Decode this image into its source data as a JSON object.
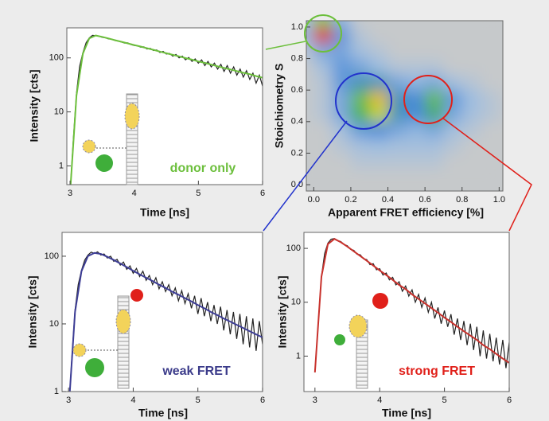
{
  "chart_data": [
    {
      "type": "line",
      "log_y": true,
      "x_label": "Time [ns]",
      "y_label": "Intensity [cts]",
      "annotation": "donor only",
      "annotation_color": "#6cbf3c",
      "xlim": [
        2.95,
        6.0
      ],
      "xticks": [
        3,
        4,
        5,
        6
      ],
      "ylim": [
        0.45,
        360
      ],
      "yticks": [
        1,
        10,
        100
      ],
      "series": [
        {
          "color": "#222222",
          "x": [
            3.0,
            3.05,
            3.1,
            3.15,
            3.2,
            3.25,
            3.3,
            3.35,
            3.4,
            3.45,
            3.5,
            3.55,
            3.6,
            3.65,
            3.7,
            3.75,
            3.8,
            3.85,
            3.9,
            3.95,
            4.0,
            4.05,
            4.1,
            4.15,
            4.2,
            4.25,
            4.3,
            4.35,
            4.4,
            4.45,
            4.5,
            4.55,
            4.6,
            4.65,
            4.7,
            4.75,
            4.8,
            4.85,
            4.9,
            4.95,
            5.0,
            5.05,
            5.1,
            5.15,
            5.2,
            5.25,
            5.3,
            5.35,
            5.4,
            5.45,
            5.5,
            5.55,
            5.6,
            5.65,
            5.7,
            5.75,
            5.8,
            5.85,
            5.9,
            5.95,
            6.0
          ],
          "values": [
            0.3,
            3,
            22,
            70,
            125,
            190,
            235,
            262,
            258,
            252,
            240,
            236,
            225,
            222,
            210,
            204,
            197,
            188,
            190,
            176,
            170,
            168,
            158,
            160,
            146,
            150,
            137,
            140,
            126,
            132,
            118,
            121,
            108,
            116,
            100,
            108,
            92,
            102,
            86,
            96,
            80,
            92,
            72,
            86,
            68,
            80,
            62,
            76,
            56,
            72,
            52,
            68,
            48,
            62,
            44,
            58,
            40,
            52,
            34,
            48,
            30
          ]
        },
        {
          "color": "#6cbf3c",
          "x": [
            3.0,
            3.1,
            3.2,
            3.3,
            3.4,
            3.5,
            3.6,
            3.7,
            3.8,
            3.9,
            4.0,
            4.1,
            4.2,
            4.3,
            4.4,
            4.5,
            4.6,
            4.7,
            4.8,
            4.9,
            5.0,
            5.1,
            5.2,
            5.3,
            5.4,
            5.5,
            5.6,
            5.7,
            5.8,
            5.9,
            6.0
          ],
          "values": [
            0.3,
            20,
            120,
            230,
            260,
            245,
            229,
            213,
            199,
            186,
            173,
            162,
            151,
            141,
            131,
            122,
            114,
            107,
            99,
            93,
            86,
            81,
            75,
            70,
            65,
            61,
            57,
            53,
            50,
            46,
            43
          ]
        }
      ]
    },
    {
      "type": "heatmap",
      "x_label": "Apparent FRET efficiency [%]",
      "y_label": "Stoichiometry S",
      "xlim": [
        -0.04,
        1.02
      ],
      "ylim": [
        -0.04,
        1.04
      ],
      "xticks": [
        {
          "value": 0,
          "label": "0.0"
        },
        0.2,
        0.4,
        0.6,
        0.8,
        {
          "value": 1,
          "label": "1.0"
        }
      ],
      "yticks": [
        {
          "value": 0,
          "label": "0.0"
        },
        0.2,
        0.4,
        0.6,
        0.8,
        {
          "value": 1,
          "label": "1.0"
        }
      ],
      "x_bins": [
        -0.1,
        0,
        0.1,
        0.2,
        0.3,
        0.4,
        0.5,
        0.6,
        0.7,
        0.8,
        0.9,
        1.0
      ],
      "y_bins": [
        0,
        0.1,
        0.2,
        0.3,
        0.4,
        0.5,
        0.6,
        0.7,
        0.8,
        0.9,
        1.0,
        1.1
      ],
      "z": [
        [
          0,
          0,
          0,
          0,
          0,
          0,
          0,
          0,
          0,
          0,
          0
        ],
        [
          0,
          0,
          0,
          0.05,
          0.05,
          0.05,
          0.05,
          0.05,
          0,
          0,
          0
        ],
        [
          0,
          0,
          0.05,
          0.1,
          0.12,
          0.1,
          0.1,
          0.1,
          0.05,
          0,
          0
        ],
        [
          0,
          0,
          0.1,
          0.25,
          0.3,
          0.2,
          0.15,
          0.2,
          0.1,
          0.05,
          0
        ],
        [
          0,
          0.05,
          0.2,
          0.5,
          0.7,
          0.35,
          0.3,
          0.45,
          0.2,
          0.1,
          0.05
        ],
        [
          0,
          0.05,
          0.2,
          0.55,
          0.8,
          0.35,
          0.3,
          0.55,
          0.25,
          0.12,
          0.05
        ],
        [
          0,
          0.05,
          0.25,
          0.35,
          0.35,
          0.2,
          0.15,
          0.2,
          0.1,
          0.05,
          0
        ],
        [
          0,
          0.1,
          0.25,
          0.2,
          0.12,
          0.05,
          0.05,
          0.05,
          0,
          0,
          0
        ],
        [
          0.05,
          0.2,
          0.2,
          0.1,
          0.05,
          0,
          0,
          0,
          0,
          0,
          0
        ],
        [
          0.15,
          1.0,
          0.25,
          0.05,
          0,
          0,
          0,
          0,
          0,
          0,
          0
        ],
        [
          0.1,
          0.6,
          0.15,
          0,
          0,
          0,
          0,
          0,
          0,
          0,
          0
        ]
      ],
      "colorscale": [
        [
          0,
          "#c6c9cb"
        ],
        [
          0.12,
          "#9dbde0"
        ],
        [
          0.3,
          "#4a8ad8"
        ],
        [
          0.5,
          "#46b35a"
        ],
        [
          0.75,
          "#e4df2e"
        ],
        [
          1,
          "#e0301e"
        ]
      ]
    },
    {
      "type": "line",
      "log_y": true,
      "x_label": "Time [ns]",
      "y_label": "Intensity [cts]",
      "annotation": "weak FRET",
      "annotation_color": "#3b3b8a",
      "xlim": [
        2.9,
        6.0
      ],
      "xticks": [
        3,
        4,
        5,
        6
      ],
      "ylim": [
        1,
        225
      ],
      "yticks": [
        1,
        10,
        100
      ],
      "series": [
        {
          "color": "#222222",
          "x": [
            3.0,
            3.05,
            3.1,
            3.15,
            3.2,
            3.25,
            3.3,
            3.35,
            3.4,
            3.45,
            3.5,
            3.55,
            3.6,
            3.65,
            3.7,
            3.75,
            3.8,
            3.85,
            3.9,
            3.95,
            4.0,
            4.05,
            4.1,
            4.15,
            4.2,
            4.25,
            4.3,
            4.35,
            4.4,
            4.45,
            4.5,
            4.55,
            4.6,
            4.65,
            4.7,
            4.75,
            4.8,
            4.85,
            4.9,
            4.95,
            5.0,
            5.05,
            5.1,
            5.15,
            5.2,
            5.25,
            5.3,
            5.35,
            5.4,
            5.45,
            5.5,
            5.55,
            5.6,
            5.65,
            5.7,
            5.75,
            5.8,
            5.85,
            5.9,
            5.95,
            6.0
          ],
          "values": [
            0.5,
            3,
            16,
            38,
            62,
            88,
            104,
            115,
            110,
            116,
            104,
            108,
            94,
            100,
            84,
            90,
            74,
            82,
            64,
            72,
            56,
            66,
            50,
            60,
            44,
            52,
            38,
            48,
            33,
            42,
            30,
            38,
            26,
            34,
            22,
            31,
            20,
            28,
            17,
            26,
            14,
            24,
            13,
            21,
            11,
            19,
            10,
            18,
            8,
            16,
            7,
            15,
            6,
            14,
            5,
            13,
            4.5,
            12,
            4,
            11,
            5
          ]
        },
        {
          "color": "#3d3d95",
          "x": [
            3.0,
            3.1,
            3.2,
            3.3,
            3.4,
            3.5,
            3.6,
            3.7,
            3.8,
            3.9,
            4.0,
            4.1,
            4.2,
            4.3,
            4.4,
            4.5,
            4.6,
            4.7,
            4.8,
            4.9,
            5.0,
            5.1,
            5.2,
            5.3,
            5.4,
            5.5,
            5.6,
            5.7,
            5.8,
            5.9,
            6.0
          ],
          "values": [
            0.5,
            15,
            60,
            100,
            112,
            108,
            98,
            88,
            78,
            69,
            61,
            54,
            48,
            43,
            38,
            34,
            30,
            27,
            24,
            21.5,
            19,
            17,
            15,
            13.5,
            12,
            10.8,
            9.7,
            8.7,
            7.8,
            7,
            6.3
          ]
        }
      ]
    },
    {
      "type": "line",
      "log_y": true,
      "x_label": "Time [ns]",
      "y_label": "Intensity [cts]",
      "annotation": "strong FRET",
      "annotation_color": "#e0201a",
      "xlim": [
        2.83,
        6.0
      ],
      "xticks": [
        3,
        4,
        5,
        6
      ],
      "ylim": [
        0.22,
        198
      ],
      "yticks": [
        1,
        10,
        100
      ],
      "series": [
        {
          "color": "#222222",
          "x": [
            3.0,
            3.05,
            3.1,
            3.15,
            3.2,
            3.25,
            3.3,
            3.35,
            3.4,
            3.45,
            3.5,
            3.55,
            3.6,
            3.65,
            3.7,
            3.75,
            3.8,
            3.85,
            3.9,
            3.95,
            4.0,
            4.05,
            4.1,
            4.15,
            4.2,
            4.25,
            4.3,
            4.35,
            4.4,
            4.45,
            4.5,
            4.55,
            4.6,
            4.65,
            4.7,
            4.75,
            4.8,
            4.85,
            4.9,
            4.95,
            5.0,
            5.05,
            5.1,
            5.15,
            5.2,
            5.25,
            5.3,
            5.35,
            5.4,
            5.45,
            5.5,
            5.55,
            5.6,
            5.65,
            5.7,
            5.75,
            5.8,
            5.85,
            5.9,
            5.95,
            6.0
          ],
          "values": [
            0.5,
            4,
            30,
            80,
            125,
            148,
            152,
            140,
            134,
            118,
            112,
            96,
            92,
            78,
            76,
            64,
            62,
            50,
            52,
            40,
            42,
            32,
            35,
            26,
            29,
            21,
            24,
            16,
            20,
            13,
            17,
            10,
            14,
            8,
            12,
            6.5,
            10,
            5,
            8,
            4,
            7,
            3.5,
            6,
            2.5,
            5,
            2,
            4.5,
            1.6,
            4,
            1.3,
            3.5,
            1,
            3,
            0.9,
            2.6,
            0.8,
            2.2,
            0.7,
            2,
            0.6,
            1.8
          ]
        },
        {
          "color": "#c8312c",
          "x": [
            3.0,
            3.1,
            3.2,
            3.3,
            3.4,
            3.5,
            3.6,
            3.7,
            3.8,
            3.9,
            4.0,
            4.1,
            4.2,
            4.3,
            4.4,
            4.5,
            4.6,
            4.7,
            4.8,
            4.9,
            5.0,
            5.1,
            5.2,
            5.3,
            5.4,
            5.5,
            5.6,
            5.7,
            5.8,
            5.9,
            6.0
          ],
          "values": [
            0.5,
            30,
            120,
            150,
            130,
            108,
            88,
            72,
            59,
            48,
            39,
            32,
            26,
            21,
            17.5,
            14,
            11.5,
            9.5,
            7.8,
            6.4,
            5.2,
            4.3,
            3.5,
            2.9,
            2.4,
            2,
            1.6,
            1.35,
            1.1,
            0.9,
            0.75
          ]
        }
      ]
    }
  ]
}
